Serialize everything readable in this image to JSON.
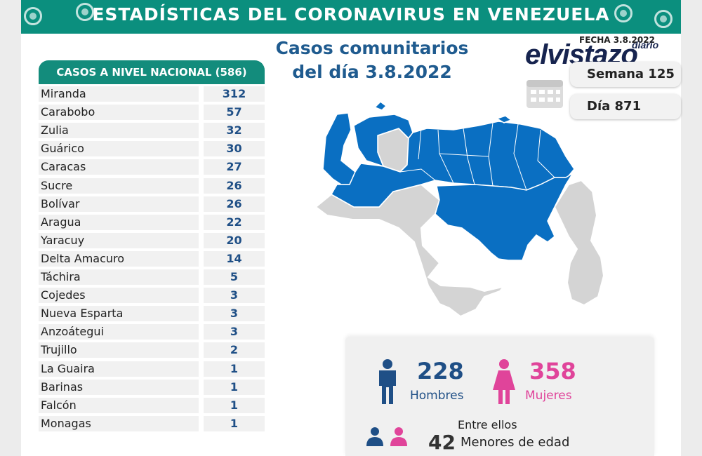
{
  "header": {
    "title": "ESTADÍSTICAS DEL CORONAVIRUS EN VENEZUELA"
  },
  "subtitle": {
    "line1": "Casos comunitarios",
    "line2": "del día 3.8.2022"
  },
  "logo": {
    "main": "elvistazo",
    "sub": "diario"
  },
  "info": {
    "fecha_label": "FECHA 3.8.2022",
    "semana": "Semana 125",
    "dia": "Día 871"
  },
  "table": {
    "header": "CASOS A NIVEL NACIONAL (586)",
    "rows": [
      {
        "name": "Miranda",
        "value": "312"
      },
      {
        "name": "Carabobo",
        "value": "57"
      },
      {
        "name": "Zulia",
        "value": "32"
      },
      {
        "name": "Guárico",
        "value": "30"
      },
      {
        "name": "Caracas",
        "value": "27"
      },
      {
        "name": "Sucre",
        "value": "26"
      },
      {
        "name": "Bolívar",
        "value": "26"
      },
      {
        "name": "Aragua",
        "value": "22"
      },
      {
        "name": "Yaracuy",
        "value": "20"
      },
      {
        "name": "Delta Amacuro",
        "value": "14"
      },
      {
        "name": "Táchira",
        "value": "5"
      },
      {
        "name": "Cojedes",
        "value": "3"
      },
      {
        "name": "Nueva Esparta",
        "value": "3"
      },
      {
        "name": "Anzoátegui",
        "value": "3"
      },
      {
        "name": "Trujillo",
        "value": "2"
      },
      {
        "name": "La Guaira",
        "value": "1"
      },
      {
        "name": "Barinas",
        "value": "1"
      },
      {
        "name": "Falcón",
        "value": "1"
      },
      {
        "name": "Monagas",
        "value": "1"
      }
    ]
  },
  "stats": {
    "hombres_num": "228",
    "hombres_label": "Hombres",
    "mujeres_num": "358",
    "mujeres_label": "Mujeres",
    "entre_ellos": "Entre ellos",
    "menores_num": "42",
    "menores_label": "Menores de edad"
  },
  "colors": {
    "banner": "#0b8f7e",
    "map_active": "#0a6fc2",
    "map_inactive": "#d4d4d4",
    "male": "#1f4f86",
    "female": "#e0449a"
  },
  "icons": [
    "virus-icon",
    "calendar-icon",
    "male-icon",
    "female-icon"
  ]
}
